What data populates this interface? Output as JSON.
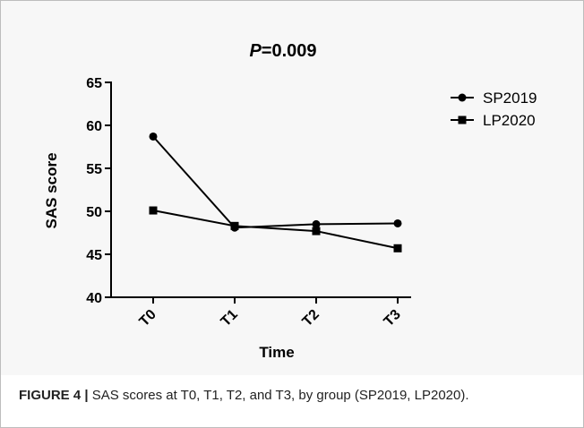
{
  "chart_data": {
    "type": "line",
    "title": "=0.009",
    "title_italic_prefix": "P",
    "xlabel": "Time",
    "ylabel": "SAS score",
    "categories": [
      "T0",
      "T1",
      "T2",
      "T3"
    ],
    "ylim": [
      40,
      65
    ],
    "yticks": [
      40,
      45,
      50,
      55,
      60,
      65
    ],
    "grid": false,
    "legend_position": "top-right",
    "series": [
      {
        "name": "SP2019",
        "marker": "circle",
        "color": "#000000",
        "values": [
          58.7,
          48.1,
          48.5,
          48.6
        ]
      },
      {
        "name": "LP2020",
        "marker": "square",
        "color": "#000000",
        "values": [
          50.1,
          48.3,
          47.7,
          45.7
        ]
      }
    ]
  },
  "caption": {
    "label": "FIGURE 4 |",
    "text": " SAS scores at T0, T1, T2, and T3, by group (SP2019, LP2020)."
  }
}
